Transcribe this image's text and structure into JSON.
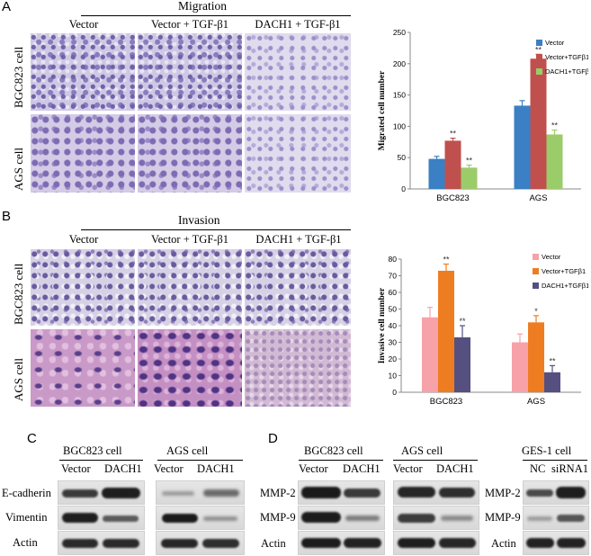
{
  "panels": {
    "A": {
      "letter": "A",
      "title": "Migration",
      "columns": [
        "Vector",
        "Vector + TGF-β1",
        "DACH1 + TGF-β1"
      ],
      "rows": [
        "BGC823 cell",
        "AGS cell"
      ]
    },
    "B": {
      "letter": "B",
      "title": "Invasion",
      "columns": [
        "Vector",
        "Vector + TGF-β1",
        "DACH1 + TGF-β1"
      ],
      "rows": [
        "BGC823 cell",
        "AGS cell"
      ]
    },
    "C": {
      "letter": "C",
      "groups": [
        "BGC823 cell",
        "AGS cell"
      ],
      "lanes": [
        "Vector",
        "DACH1",
        "Vector",
        "DACH1"
      ],
      "proteins": [
        "E-cadherin",
        "Vimentin",
        "Actin"
      ]
    },
    "D": {
      "letter": "D",
      "groups": [
        "BGC823 cell",
        "AGS cell",
        "GES-1 cell"
      ],
      "lanes": [
        "Vector",
        "DACH1",
        "Vector",
        "DACH1",
        "NC",
        "siRNA1"
      ],
      "proteins_left": [
        "MMP-2",
        "MMP-9",
        "Actin"
      ],
      "proteins_right": [
        "MMP-2",
        "MMP-9",
        "Actin"
      ]
    }
  },
  "chart_data": [
    {
      "type": "bar",
      "categories": [
        "BGC823",
        "AGS"
      ],
      "ylabel": "Migrated cell number",
      "ylim": [
        0,
        250
      ],
      "yticks": [
        0,
        50,
        100,
        150,
        200,
        250
      ],
      "legend_position": "top-right",
      "series": [
        {
          "name": "Vector",
          "color": "#3b7fc4",
          "values": [
            48,
            133
          ],
          "errors": [
            4,
            8
          ],
          "marks": [
            "",
            ""
          ]
        },
        {
          "name": "Vector+TGFβ1",
          "color": "#c0504d",
          "values": [
            77,
            208
          ],
          "errors": [
            4,
            7
          ],
          "marks": [
            "**",
            "**"
          ]
        },
        {
          "name": "DACH1+TGFβ1",
          "color": "#9bcc6a",
          "values": [
            34,
            87
          ],
          "errors": [
            4,
            7
          ],
          "marks": [
            "**",
            "**"
          ]
        }
      ]
    },
    {
      "type": "bar",
      "categories": [
        "BGC823",
        "AGS"
      ],
      "ylabel": "Invasive cell number",
      "ylim": [
        0,
        80
      ],
      "yticks": [
        0,
        10,
        20,
        30,
        40,
        50,
        60,
        70,
        80
      ],
      "legend_position": "top-right",
      "series": [
        {
          "name": "Vector",
          "color": "#f7a1a8",
          "values": [
            45,
            30
          ],
          "errors": [
            6,
            5
          ],
          "marks": [
            "",
            ""
          ]
        },
        {
          "name": "Vector+TGFβ1",
          "color": "#ee7d22",
          "values": [
            73,
            42
          ],
          "errors": [
            4,
            4
          ],
          "marks": [
            "**",
            "*"
          ]
        },
        {
          "name": "DACH1+TGFβ1",
          "color": "#55507f",
          "values": [
            33,
            12
          ],
          "errors": [
            7,
            4
          ],
          "marks": [
            "**",
            "**"
          ]
        }
      ]
    }
  ]
}
